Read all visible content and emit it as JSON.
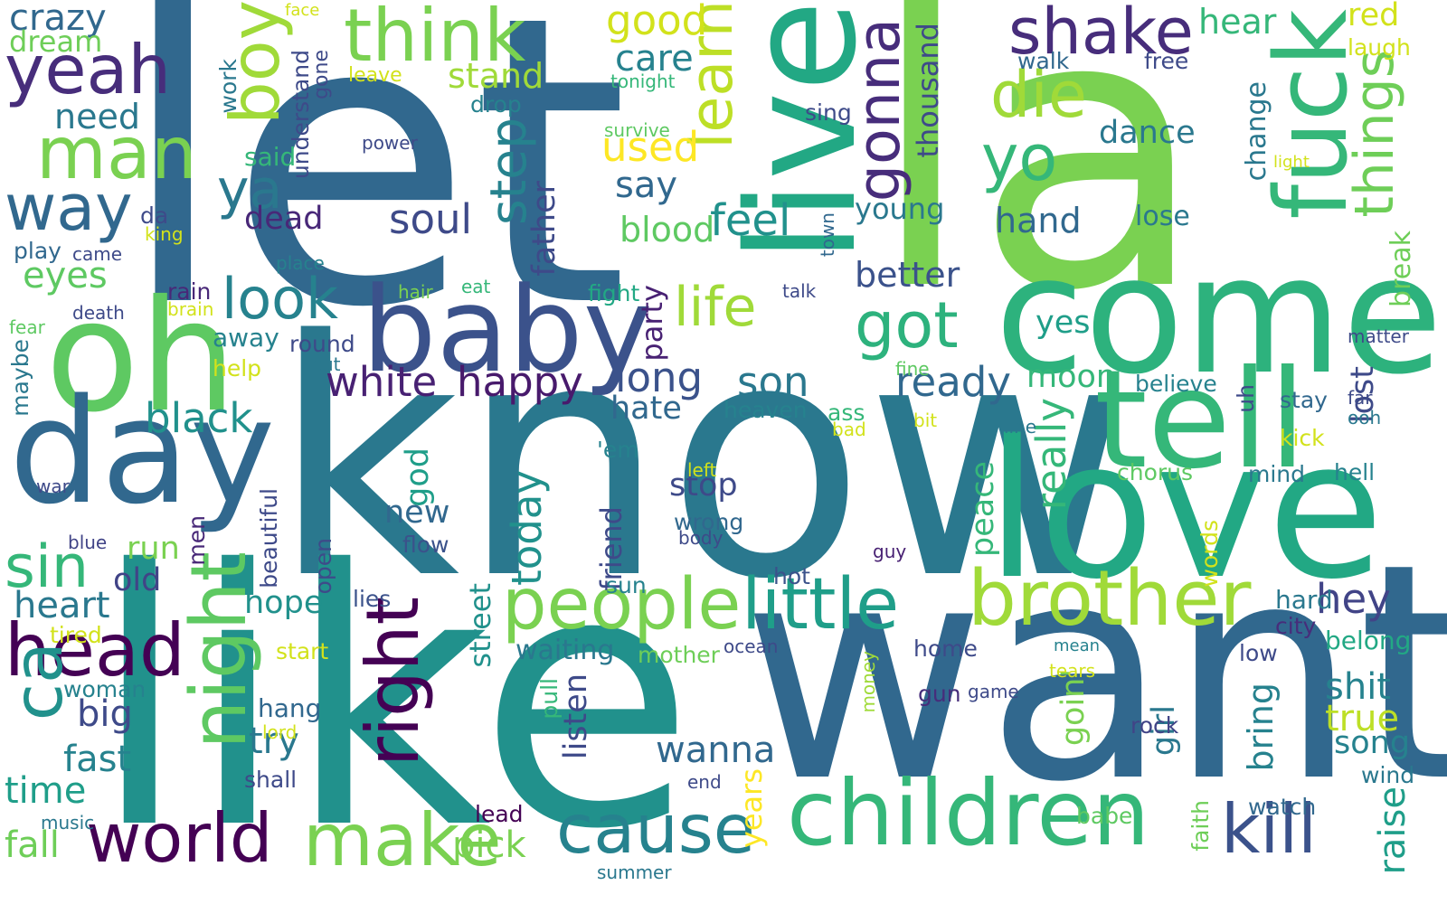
{
  "words": [
    {
      "text": "let",
      "color": "#31688e"
    },
    {
      "text": "la",
      "color": "#7ad151"
    },
    {
      "text": "know",
      "color": "#2a788e"
    },
    {
      "text": "like",
      "color": "#21918c"
    },
    {
      "text": "want",
      "color": "#31688e"
    },
    {
      "text": "love",
      "color": "#22a884"
    },
    {
      "text": "come",
      "color": "#2db27d"
    },
    {
      "text": "baby",
      "color": "#3b528b"
    },
    {
      "text": "oh",
      "color": "#5ec962"
    },
    {
      "text": "day",
      "color": "#31688e"
    },
    {
      "text": "live",
      "color": "#22a884"
    },
    {
      "text": "tell",
      "color": "#35b779"
    },
    {
      "text": "children",
      "color": "#35b779"
    },
    {
      "text": "brother",
      "color": "#a0da39"
    },
    {
      "text": "people",
      "color": "#7ad151"
    },
    {
      "text": "little",
      "color": "#1f9e89"
    },
    {
      "text": "fuck",
      "color": "#35b779"
    },
    {
      "text": "night",
      "color": "#5ec962"
    },
    {
      "text": "head",
      "color": "#440154"
    },
    {
      "text": "ca",
      "color": "#21918c"
    },
    {
      "text": "right",
      "color": "#440154"
    },
    {
      "text": "make",
      "color": "#7ad151"
    },
    {
      "text": "world",
      "color": "#440154"
    },
    {
      "text": "cause",
      "color": "#26828e"
    },
    {
      "text": "kill",
      "color": "#3b528b"
    },
    {
      "text": "think",
      "color": "#7ad151"
    },
    {
      "text": "yeah",
      "color": "#472d7b"
    },
    {
      "text": "man",
      "color": "#7ad151"
    },
    {
      "text": "way",
      "color": "#31688e"
    },
    {
      "text": "boy",
      "color": "#a0da39"
    },
    {
      "text": "shake",
      "color": "#472d7b"
    },
    {
      "text": "yo",
      "color": "#35b779"
    },
    {
      "text": "die",
      "color": "#a0da39"
    },
    {
      "text": "learn",
      "color": "#bddf26"
    },
    {
      "text": "gonna",
      "color": "#472d7b"
    },
    {
      "text": "got",
      "color": "#2db27d"
    },
    {
      "text": "life",
      "color": "#a0da39"
    },
    {
      "text": "look",
      "color": "#26828e"
    },
    {
      "text": "ya",
      "color": "#2a788e"
    },
    {
      "text": "sin",
      "color": "#35b779"
    },
    {
      "text": "things",
      "color": "#6ece58"
    },
    {
      "text": "step",
      "color": "#26828e"
    },
    {
      "text": "black",
      "color": "#21918c"
    },
    {
      "text": "white",
      "color": "#482173"
    },
    {
      "text": "happy",
      "color": "#481a6c"
    },
    {
      "text": "ready",
      "color": "#31688e"
    },
    {
      "text": "long",
      "color": "#3b528b"
    },
    {
      "text": "son",
      "color": "#2a788e"
    },
    {
      "text": "feel",
      "color": "#21918c"
    },
    {
      "text": "soul",
      "color": "#3e4a89"
    },
    {
      "text": "really",
      "color": "#35b779"
    },
    {
      "text": "hey",
      "color": "#414487"
    },
    {
      "text": "today",
      "color": "#21918c"
    },
    {
      "text": "heart",
      "color": "#2a788e"
    },
    {
      "text": "big",
      "color": "#3e4a89"
    },
    {
      "text": "time",
      "color": "#1f9e89"
    },
    {
      "text": "fast",
      "color": "#26828e"
    },
    {
      "text": "try",
      "color": "#2a788e"
    },
    {
      "text": "hope",
      "color": "#21918c"
    },
    {
      "text": "wanna",
      "color": "#31688e"
    },
    {
      "text": "stop",
      "color": "#3e4a89"
    },
    {
      "text": "pick",
      "color": "#7ad151"
    },
    {
      "text": "fall",
      "color": "#6ece58"
    },
    {
      "text": "shit",
      "color": "#26828e"
    },
    {
      "text": "true",
      "color": "#bddf26"
    },
    {
      "text": "song",
      "color": "#26828e"
    },
    {
      "text": "raise",
      "color": "#1f9e89"
    },
    {
      "text": "need",
      "color": "#2a788e"
    },
    {
      "text": "crazy",
      "color": "#31688e"
    },
    {
      "text": "dream",
      "color": "#6ece58"
    },
    {
      "text": "eyes",
      "color": "#5ec962"
    },
    {
      "text": "dead",
      "color": "#482878"
    },
    {
      "text": "say",
      "color": "#31688e"
    },
    {
      "text": "care",
      "color": "#26828e"
    },
    {
      "text": "used",
      "color": "#fde725"
    },
    {
      "text": "good",
      "color": "#d2e21b"
    },
    {
      "text": "stand",
      "color": "#a0da39"
    },
    {
      "text": "blood",
      "color": "#5ec962"
    },
    {
      "text": "better",
      "color": "#3b528b"
    },
    {
      "text": "young",
      "color": "#2a788e"
    },
    {
      "text": "hand",
      "color": "#31688e"
    },
    {
      "text": "dance",
      "color": "#2a788e"
    },
    {
      "text": "thousand",
      "color": "#3e4a89"
    },
    {
      "text": "hear",
      "color": "#35b779"
    },
    {
      "text": "red",
      "color": "#d2e21b"
    },
    {
      "text": "laugh",
      "color": "#d2e21b"
    },
    {
      "text": "walk",
      "color": "#31688e"
    },
    {
      "text": "free",
      "color": "#3e4a89"
    },
    {
      "text": "lose",
      "color": "#2a788e"
    },
    {
      "text": "moon",
      "color": "#35b779"
    },
    {
      "text": "hate",
      "color": "#31688e"
    },
    {
      "text": "new",
      "color": "#31688e"
    },
    {
      "text": "run",
      "color": "#7ad151"
    },
    {
      "text": "old",
      "color": "#414487"
    },
    {
      "text": "god",
      "color": "#1f9e89"
    },
    {
      "text": "peace",
      "color": "#35b779"
    },
    {
      "text": "girl",
      "color": "#2a788e"
    },
    {
      "text": "bring",
      "color": "#26828e"
    },
    {
      "text": "listen",
      "color": "#3e4a89"
    },
    {
      "text": "street",
      "color": "#21918c"
    },
    {
      "text": "friend",
      "color": "#3e4a89"
    },
    {
      "text": "father",
      "color": "#3e4a89"
    },
    {
      "text": "party",
      "color": "#482173"
    },
    {
      "text": "lost",
      "color": "#3e4a89"
    },
    {
      "text": "change",
      "color": "#2a788e"
    },
    {
      "text": "break",
      "color": "#6ece58"
    },
    {
      "text": "goin'",
      "color": "#7ad151"
    },
    {
      "text": "years",
      "color": "#fde725"
    },
    {
      "text": "waiting",
      "color": "#2a788e"
    },
    {
      "text": "mother",
      "color": "#6ece58"
    },
    {
      "text": "belong",
      "color": "#22a884"
    },
    {
      "text": "hard",
      "color": "#2a788e"
    },
    {
      "text": "city",
      "color": "#472d7b"
    },
    {
      "text": "low",
      "color": "#3e4a89"
    },
    {
      "text": "rock",
      "color": "#414487"
    },
    {
      "text": "gun",
      "color": "#472d7b"
    },
    {
      "text": "game",
      "color": "#3e4a89"
    },
    {
      "text": "home",
      "color": "#3e4a89"
    },
    {
      "text": "wind",
      "color": "#2a788e"
    },
    {
      "text": "watch",
      "color": "#31688e"
    },
    {
      "text": "babe",
      "color": "#5ec962"
    },
    {
      "text": "faith",
      "color": "#6ece58"
    },
    {
      "text": "words",
      "color": "#d2e21b"
    },
    {
      "text": "lead",
      "color": "#440154"
    },
    {
      "text": "summer",
      "color": "#2a788e"
    },
    {
      "text": "end",
      "color": "#3e4a89"
    },
    {
      "text": "pull",
      "color": "#35b779"
    },
    {
      "text": "sun",
      "color": "#26828e"
    },
    {
      "text": "flow",
      "color": "#3b528b"
    },
    {
      "text": "lies",
      "color": "#3b528b"
    },
    {
      "text": "hot",
      "color": "#3b528b"
    },
    {
      "text": "open",
      "color": "#3e4a89"
    },
    {
      "text": "beautiful",
      "color": "#3e4a89"
    },
    {
      "text": "men",
      "color": "#482878"
    },
    {
      "text": "war",
      "color": "#3e4a89"
    },
    {
      "text": "blue",
      "color": "#414487"
    },
    {
      "text": "woman",
      "color": "#26828e"
    },
    {
      "text": "tired",
      "color": "#d2e21b"
    },
    {
      "text": "start",
      "color": "#d2e21b"
    },
    {
      "text": "hang",
      "color": "#31688e"
    },
    {
      "text": "lord",
      "color": "#d2e21b"
    },
    {
      "text": "shall",
      "color": "#3e4a89"
    },
    {
      "text": "music",
      "color": "#2a788e"
    },
    {
      "text": "money",
      "color": "#a0da39"
    },
    {
      "text": "ocean",
      "color": "#3e4a89"
    },
    {
      "text": "tears",
      "color": "#d2e21b"
    },
    {
      "text": "mean",
      "color": "#26828e"
    },
    {
      "text": "guy",
      "color": "#482173"
    },
    {
      "text": "left",
      "color": "#d2e21b"
    },
    {
      "text": "wrong",
      "color": "#31688e"
    },
    {
      "text": "body",
      "color": "#3e4a89"
    },
    {
      "text": "chorus",
      "color": "#5ec962"
    },
    {
      "text": "mind",
      "color": "#2a788e"
    },
    {
      "text": "hell",
      "color": "#26828e"
    },
    {
      "text": "'em",
      "color": "#26828e"
    },
    {
      "text": "ass",
      "color": "#35b779"
    },
    {
      "text": "bad",
      "color": "#d2e21b"
    },
    {
      "text": "bit",
      "color": "#d2e21b"
    },
    {
      "text": "line",
      "color": "#2a788e"
    },
    {
      "text": "kick",
      "color": "#d2e21b"
    },
    {
      "text": "ooh",
      "color": "#2a788e"
    },
    {
      "text": "far",
      "color": "#3e4a89"
    },
    {
      "text": "stay",
      "color": "#31688e"
    },
    {
      "text": "uh",
      "color": "#3e4a89"
    },
    {
      "text": "yes",
      "color": "#1f9e89"
    },
    {
      "text": "believe",
      "color": "#26828e"
    },
    {
      "text": "heaven",
      "color": "#26828e"
    },
    {
      "text": "fine",
      "color": "#5ec962"
    },
    {
      "text": "matter",
      "color": "#3e4a89"
    },
    {
      "text": "talk",
      "color": "#3e4a89"
    },
    {
      "text": "fight",
      "color": "#22a884"
    },
    {
      "text": "eat",
      "color": "#35b779"
    },
    {
      "text": "hair",
      "color": "#7ad151"
    },
    {
      "text": "brain",
      "color": "#d2e21b"
    },
    {
      "text": "rain",
      "color": "#482878"
    },
    {
      "text": "round",
      "color": "#3e4a89"
    },
    {
      "text": "cut",
      "color": "#2a788e"
    },
    {
      "text": "help",
      "color": "#d2e21b"
    },
    {
      "text": "away",
      "color": "#26828e"
    },
    {
      "text": "place",
      "color": "#26828e"
    },
    {
      "text": "town",
      "color": "#31688e"
    },
    {
      "text": "death",
      "color": "#3e4a89"
    },
    {
      "text": "fear",
      "color": "#5ec962"
    },
    {
      "text": "maybe",
      "color": "#2a788e"
    },
    {
      "text": "play",
      "color": "#31688e"
    },
    {
      "text": "came",
      "color": "#3e4a89"
    },
    {
      "text": "da",
      "color": "#3e4a89"
    },
    {
      "text": "king",
      "color": "#d2e21b"
    },
    {
      "text": "said",
      "color": "#35b779"
    },
    {
      "text": "understand",
      "color": "#3e4a89"
    },
    {
      "text": "work",
      "color": "#2a788e"
    },
    {
      "text": "gone",
      "color": "#3e4a89"
    },
    {
      "text": "face",
      "color": "#d2e21b"
    },
    {
      "text": "leave",
      "color": "#d2e21b"
    },
    {
      "text": "tonight",
      "color": "#35b779"
    },
    {
      "text": "drop",
      "color": "#26828e"
    },
    {
      "text": "survive",
      "color": "#5ec962"
    },
    {
      "text": "power",
      "color": "#3e4a89"
    },
    {
      "text": "sing",
      "color": "#3e4a89"
    },
    {
      "text": "light",
      "color": "#d2e21b"
    }
  ]
}
